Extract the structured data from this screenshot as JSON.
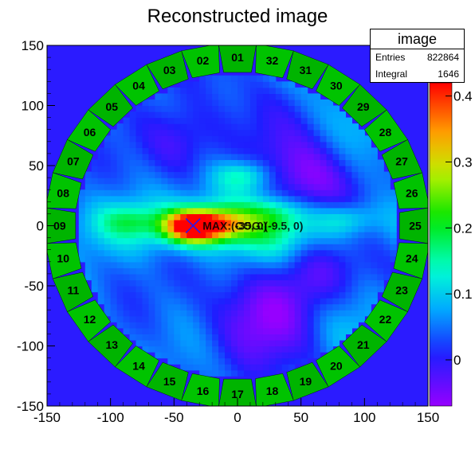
{
  "chart_data": {
    "type": "heatmap",
    "title": "Reconstructed image",
    "xlabel": "",
    "ylabel": "",
    "xlim": [
      -150,
      150
    ],
    "ylim": [
      -150,
      150
    ],
    "x_ticks": [
      -150,
      -100,
      -50,
      0,
      50,
      100,
      150
    ],
    "y_ticks": [
      150,
      100,
      50,
      0,
      -50,
      -100,
      -150
    ],
    "z_range": [
      -0.07,
      0.42
    ],
    "z_ticks": [
      {
        "value": 0.4,
        "label": "0.4"
      },
      {
        "value": 0.3,
        "label": "0.3"
      },
      {
        "value": 0.2,
        "label": "0.2"
      },
      {
        "value": 0.1,
        "label": "0.1"
      },
      {
        "value": 0,
        "label": "0"
      }
    ],
    "field_radius": 126,
    "hotspots": [
      {
        "x": -35,
        "y": 0,
        "amp": 0.4
      },
      {
        "x": -10,
        "y": 2,
        "amp": 0.14
      },
      {
        "x": 5,
        "y": 42,
        "amp": 0.1
      },
      {
        "x": -85,
        "y": 4,
        "amp": 0.07
      },
      {
        "x": 85,
        "y": 6,
        "amp": 0.07
      },
      {
        "x": 30,
        "y": 10,
        "amp": 0.06
      }
    ],
    "detectors": [
      "01",
      "02",
      "03",
      "04",
      "05",
      "06",
      "07",
      "08",
      "09",
      "10",
      "11",
      "12",
      "13",
      "14",
      "15",
      "16",
      "17",
      "18",
      "19",
      "20",
      "21",
      "22",
      "23",
      "24",
      "25",
      "26",
      "27",
      "28",
      "29",
      "30",
      "31",
      "32"
    ],
    "annotations": [
      {
        "text": "MAX:(-35, 0)",
        "x": -35,
        "y": 0
      },
      {
        "text": "COG:(-9.5, 0)",
        "x": -9.5,
        "y": 0
      }
    ],
    "marker": {
      "x": -35,
      "y": 0
    }
  },
  "stats": {
    "title": "image",
    "entries_label": "Entries",
    "entries_value": "822864",
    "integral_label": "Integral",
    "integral_value": "1646"
  }
}
